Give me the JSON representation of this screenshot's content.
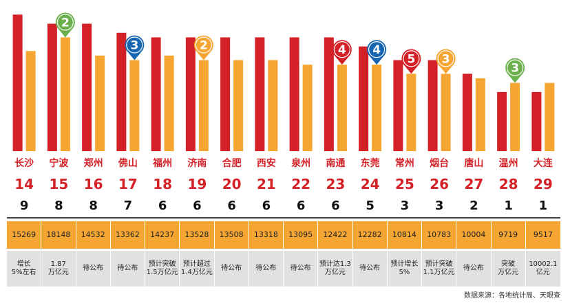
{
  "chart_data": {
    "type": "bar",
    "categories": [
      "长沙",
      "宁波",
      "郑州",
      "佛山",
      "福州",
      "济南",
      "合肥",
      "西安",
      "泉州",
      "南通",
      "东莞",
      "常州",
      "烟台",
      "唐山",
      "温州",
      "大连"
    ],
    "series": [
      {
        "name": "red",
        "color": "#d42128",
        "values": [
          15,
          14,
          14,
          13,
          12.5,
          12.5,
          12.5,
          12.5,
          12.5,
          12.5,
          11.5,
          10,
          10,
          8.5,
          6.5,
          6.5
        ]
      },
      {
        "name": "orange",
        "color": "#f5a531",
        "values": [
          11,
          12.5,
          10.5,
          10,
          10.5,
          10,
          10,
          10,
          9.5,
          9.5,
          9.5,
          8.5,
          8.5,
          8,
          7.5,
          7.5
        ]
      }
    ],
    "ylim": [
      0,
      16
    ],
    "grid": false,
    "pins": [
      {
        "index": 1,
        "label": "2",
        "color": "#6ab04c"
      },
      {
        "index": 3,
        "label": "3",
        "color": "#1565b0"
      },
      {
        "index": 5,
        "label": "2",
        "color": "#f5a531"
      },
      {
        "index": 9,
        "label": "4",
        "color": "#d42128"
      },
      {
        "index": 10,
        "label": "4",
        "color": "#1565b0"
      },
      {
        "index": 11,
        "label": "5",
        "color": "#d42128"
      },
      {
        "index": 12,
        "label": "3",
        "color": "#f5a531"
      },
      {
        "index": 14,
        "label": "3",
        "color": "#6ab04c"
      }
    ]
  },
  "table": {
    "ranks": [
      "14",
      "15",
      "16",
      "17",
      "18",
      "19",
      "20",
      "21",
      "22",
      "23",
      "24",
      "25",
      "26",
      "27",
      "28",
      "29"
    ],
    "counts": [
      "9",
      "8",
      "8",
      "7",
      "6",
      "6",
      "6",
      "6",
      "6",
      "6",
      "5",
      "3",
      "3",
      "2",
      "1",
      "1"
    ],
    "gdp": [
      "15269",
      "18148",
      "14532",
      "13362",
      "14237",
      "13528",
      "13508",
      "13318",
      "13095",
      "12422",
      "12282",
      "10814",
      "10783",
      "10004",
      "9719",
      "9517"
    ],
    "notes": [
      "增长\n5%左右",
      "1.87\n万亿元",
      "待公布",
      "待公布",
      "预计突破\n1.5万亿元",
      "预计超过\n1.4万亿元",
      "待公布",
      "待公布",
      "待公布",
      "预计达1.3\n万亿元",
      "待公布",
      "预计增长\n5%",
      "预计突破\n1.1万亿元",
      "待公布",
      "突破\n万亿元",
      "10002.1\n亿元"
    ]
  },
  "source": "数据来源：各地统计局、天眼查"
}
